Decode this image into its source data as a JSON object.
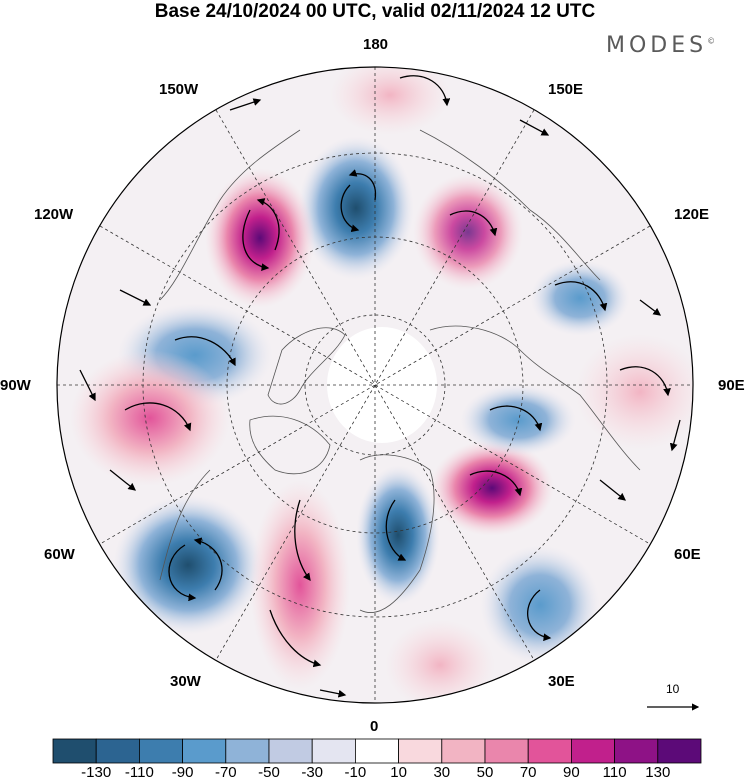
{
  "title": "Base 24/10/2024 00 UTC, valid 02/11/2024 12 UTC",
  "brand": {
    "text": "MODES",
    "mark": "©"
  },
  "longitude_labels": {
    "lon_180": "180",
    "lon_150e": "150E",
    "lon_120e": "120E",
    "lon_90e": "90E",
    "lon_60e": "60E",
    "lon_30e": "30E",
    "lon_0": "0",
    "lon_30w": "30W",
    "lon_60w": "60W",
    "lon_90w": "90W",
    "lon_120w": "120W",
    "lon_150w": "150W"
  },
  "vector_scale_label": "10",
  "colors": {
    "neg_strong": "#2c5f86",
    "neg_mid": "#4f8fbd",
    "neg_light": "#c8cfe2",
    "pos_light": "#f2c8d2",
    "pos_mid": "#e66aa3",
    "pos_strong": "#6a1a7a",
    "land_outline": "#555555"
  },
  "colorbar": {
    "colors": [
      "#1f4e6e",
      "#2c6491",
      "#3d7dae",
      "#5a9bcc",
      "#8fb3d8",
      "#c1cbe3",
      "#e4e5f1",
      "#ffffff",
      "#f9d9de",
      "#f2b4c3",
      "#ea86ac",
      "#e2549a",
      "#c1208c",
      "#8e1286",
      "#5c0a78"
    ],
    "tick_labels": [
      "-130",
      "-110",
      "-90",
      "-70",
      "-50",
      "-30",
      "-10",
      "10",
      "30",
      "50",
      "70",
      "90",
      "110",
      "130"
    ]
  }
}
